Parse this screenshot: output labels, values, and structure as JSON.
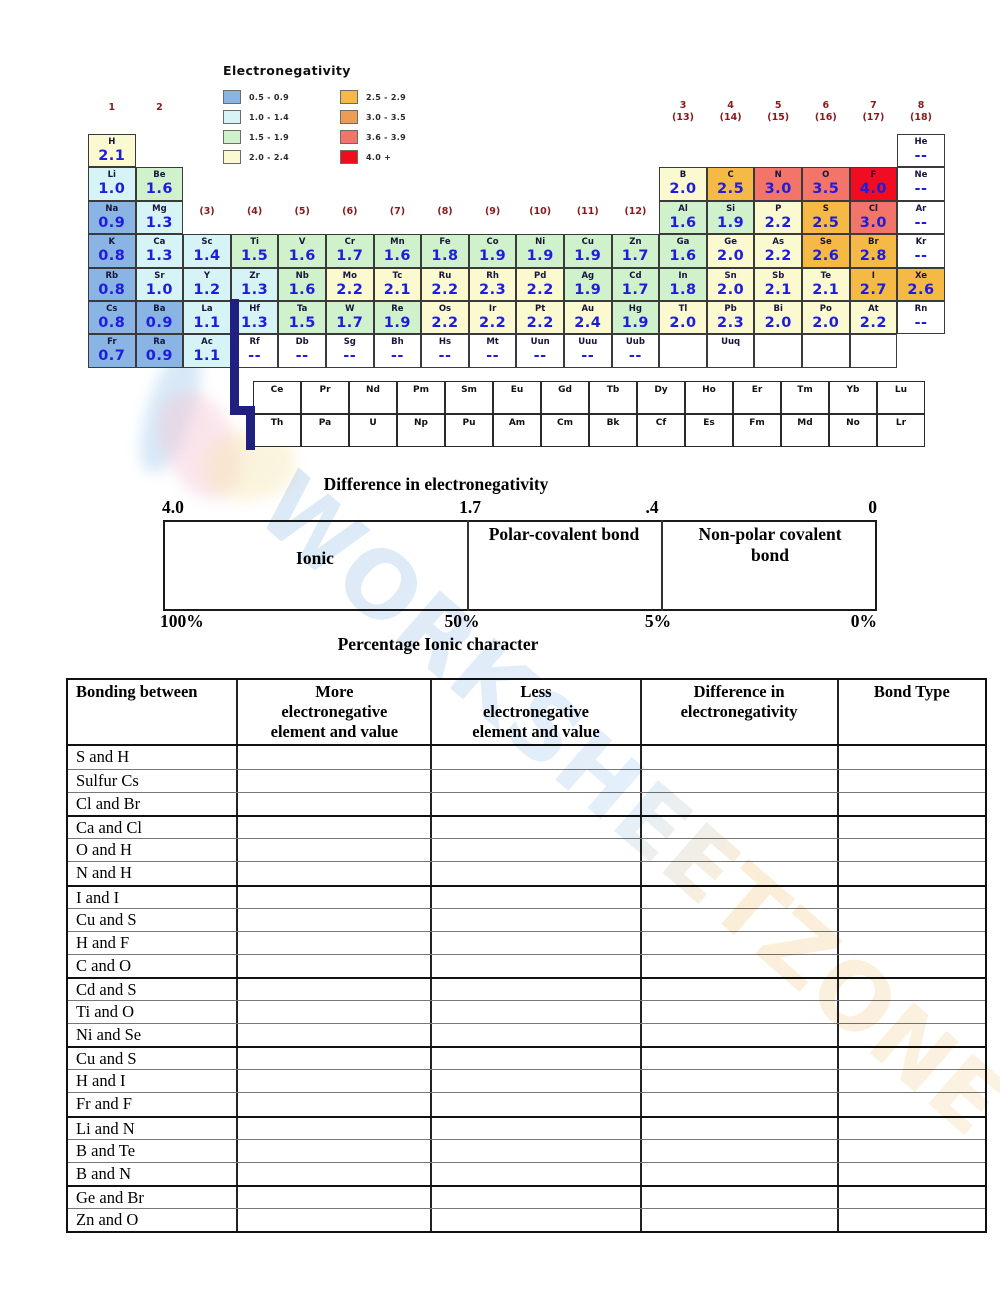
{
  "watermark": {
    "text": "WORKSHEETZONE",
    "blue": "#b9d4ee",
    "orange": "#f9e6c6"
  },
  "legend": {
    "title": "Electronegativity",
    "items": [
      {
        "range": "0.5 - 0.9",
        "color": "#8ab4e4",
        "dotted": false
      },
      {
        "range": "1.0 - 1.4",
        "color": "#d6f3f6",
        "dotted": false
      },
      {
        "range": "1.5 - 1.9",
        "color": "#cff2cc",
        "dotted": false
      },
      {
        "range": "2.0 - 2.4",
        "color": "#fbf9d0",
        "dotted": false
      },
      {
        "range": "2.5 - 2.9",
        "color": "#f5ba45",
        "dotted": false
      },
      {
        "range": "3.0 - 3.5",
        "color": "#eb9c55",
        "dotted": true
      },
      {
        "range": "3.6 - 3.9",
        "color": "#f3756a",
        "dotted": false
      },
      {
        "range": "4.0 +",
        "color": "#ee0d1d",
        "dotted": false
      }
    ]
  },
  "periodic_table": {
    "cell_colors": {
      "blue": "#8ab4e4",
      "cyan": "#d6f3f6",
      "green": "#cff2cc",
      "yellow": "#fbf9d0",
      "orange": "#f5ba45",
      "salmon": "#f3756a",
      "red": "#f10c22",
      "white": "#ffffff"
    },
    "value_color": "#1d1dde",
    "group_label_color": "#8a1a1a",
    "groups_top": [
      {
        "label": "1",
        "col": 1
      },
      {
        "label": "2",
        "col": 2
      }
    ],
    "groups_main": [
      {
        "label": "(3)",
        "col": 3
      },
      {
        "label": "(4)",
        "col": 4
      },
      {
        "label": "(5)",
        "col": 5
      },
      {
        "label": "(6)",
        "col": 6
      },
      {
        "label": "(7)",
        "col": 7
      },
      {
        "label": "(8)",
        "col": 8
      },
      {
        "label": "(9)",
        "col": 9
      },
      {
        "label": "(10)",
        "col": 10
      },
      {
        "label": "(11)",
        "col": 11
      },
      {
        "label": "(12)",
        "col": 12
      }
    ],
    "groups_right": [
      {
        "num": "3",
        "alt": "(13)",
        "col": 13
      },
      {
        "num": "4",
        "alt": "(14)",
        "col": 14
      },
      {
        "num": "5",
        "alt": "(15)",
        "col": 15
      },
      {
        "num": "6",
        "alt": "(16)",
        "col": 16
      },
      {
        "num": "7",
        "alt": "(17)",
        "col": 17
      },
      {
        "num": "8",
        "alt": "(18)",
        "col": 18
      }
    ],
    "elements": [
      {
        "sym": "H",
        "val": "2.1",
        "row": 1,
        "col": 1,
        "color": "yellow"
      },
      {
        "sym": "He",
        "val": "--",
        "row": 1,
        "col": 18,
        "color": "white"
      },
      {
        "sym": "Li",
        "val": "1.0",
        "row": 2,
        "col": 1,
        "color": "cyan"
      },
      {
        "sym": "Be",
        "val": "1.6",
        "row": 2,
        "col": 2,
        "color": "green"
      },
      {
        "sym": "B",
        "val": "2.0",
        "row": 2,
        "col": 13,
        "color": "yellow"
      },
      {
        "sym": "C",
        "val": "2.5",
        "row": 2,
        "col": 14,
        "color": "orange"
      },
      {
        "sym": "N",
        "val": "3.0",
        "row": 2,
        "col": 15,
        "color": "salmon"
      },
      {
        "sym": "O",
        "val": "3.5",
        "row": 2,
        "col": 16,
        "color": "salmon"
      },
      {
        "sym": "F",
        "val": "4.0",
        "row": 2,
        "col": 17,
        "color": "red"
      },
      {
        "sym": "Ne",
        "val": "--",
        "row": 2,
        "col": 18,
        "color": "white"
      },
      {
        "sym": "Na",
        "val": "0.9",
        "row": 3,
        "col": 1,
        "color": "blue"
      },
      {
        "sym": "Mg",
        "val": "1.3",
        "row": 3,
        "col": 2,
        "color": "cyan"
      },
      {
        "sym": "Al",
        "val": "1.6",
        "row": 3,
        "col": 13,
        "color": "green"
      },
      {
        "sym": "Si",
        "val": "1.9",
        "row": 3,
        "col": 14,
        "color": "green"
      },
      {
        "sym": "P",
        "val": "2.2",
        "row": 3,
        "col": 15,
        "color": "yellow"
      },
      {
        "sym": "S",
        "val": "2.5",
        "row": 3,
        "col": 16,
        "color": "orange"
      },
      {
        "sym": "Cl",
        "val": "3.0",
        "row": 3,
        "col": 17,
        "color": "salmon"
      },
      {
        "sym": "Ar",
        "val": "--",
        "row": 3,
        "col": 18,
        "color": "white"
      },
      {
        "sym": "K",
        "val": "0.8",
        "row": 4,
        "col": 1,
        "color": "blue"
      },
      {
        "sym": "Ca",
        "val": "1.3",
        "row": 4,
        "col": 2,
        "color": "cyan"
      },
      {
        "sym": "Sc",
        "val": "1.4",
        "row": 4,
        "col": 3,
        "color": "cyan"
      },
      {
        "sym": "Ti",
        "val": "1.5",
        "row": 4,
        "col": 4,
        "color": "green"
      },
      {
        "sym": "V",
        "val": "1.6",
        "row": 4,
        "col": 5,
        "color": "green"
      },
      {
        "sym": "Cr",
        "val": "1.7",
        "row": 4,
        "col": 6,
        "color": "green"
      },
      {
        "sym": "Mn",
        "val": "1.6",
        "row": 4,
        "col": 7,
        "color": "green"
      },
      {
        "sym": "Fe",
        "val": "1.8",
        "row": 4,
        "col": 8,
        "color": "green"
      },
      {
        "sym": "Co",
        "val": "1.9",
        "row": 4,
        "col": 9,
        "color": "green"
      },
      {
        "sym": "Ni",
        "val": "1.9",
        "row": 4,
        "col": 10,
        "color": "green"
      },
      {
        "sym": "Cu",
        "val": "1.9",
        "row": 4,
        "col": 11,
        "color": "green"
      },
      {
        "sym": "Zn",
        "val": "1.7",
        "row": 4,
        "col": 12,
        "color": "green"
      },
      {
        "sym": "Ga",
        "val": "1.6",
        "row": 4,
        "col": 13,
        "color": "green"
      },
      {
        "sym": "Ge",
        "val": "2.0",
        "row": 4,
        "col": 14,
        "color": "yellow"
      },
      {
        "sym": "As",
        "val": "2.2",
        "row": 4,
        "col": 15,
        "color": "yellow"
      },
      {
        "sym": "Se",
        "val": "2.6",
        "row": 4,
        "col": 16,
        "color": "orange"
      },
      {
        "sym": "Br",
        "val": "2.8",
        "row": 4,
        "col": 17,
        "color": "orange"
      },
      {
        "sym": "Kr",
        "val": "--",
        "row": 4,
        "col": 18,
        "color": "white"
      },
      {
        "sym": "Rb",
        "val": "0.8",
        "row": 5,
        "col": 1,
        "color": "blue"
      },
      {
        "sym": "Sr",
        "val": "1.0",
        "row": 5,
        "col": 2,
        "color": "cyan"
      },
      {
        "sym": "Y",
        "val": "1.2",
        "row": 5,
        "col": 3,
        "color": "cyan"
      },
      {
        "sym": "Zr",
        "val": "1.3",
        "row": 5,
        "col": 4,
        "color": "cyan"
      },
      {
        "sym": "Nb",
        "val": "1.6",
        "row": 5,
        "col": 5,
        "color": "green"
      },
      {
        "sym": "Mo",
        "val": "2.2",
        "row": 5,
        "col": 6,
        "color": "yellow"
      },
      {
        "sym": "Tc",
        "val": "2.1",
        "row": 5,
        "col": 7,
        "color": "yellow"
      },
      {
        "sym": "Ru",
        "val": "2.2",
        "row": 5,
        "col": 8,
        "color": "yellow"
      },
      {
        "sym": "Rh",
        "val": "2.3",
        "row": 5,
        "col": 9,
        "color": "yellow"
      },
      {
        "sym": "Pd",
        "val": "2.2",
        "row": 5,
        "col": 10,
        "color": "yellow"
      },
      {
        "sym": "Ag",
        "val": "1.9",
        "row": 5,
        "col": 11,
        "color": "green"
      },
      {
        "sym": "Cd",
        "val": "1.7",
        "row": 5,
        "col": 12,
        "color": "green"
      },
      {
        "sym": "In",
        "val": "1.8",
        "row": 5,
        "col": 13,
        "color": "green"
      },
      {
        "sym": "Sn",
        "val": "2.0",
        "row": 5,
        "col": 14,
        "color": "yellow"
      },
      {
        "sym": "Sb",
        "val": "2.1",
        "row": 5,
        "col": 15,
        "color": "yellow"
      },
      {
        "sym": "Te",
        "val": "2.1",
        "row": 5,
        "col": 16,
        "color": "yellow"
      },
      {
        "sym": "I",
        "val": "2.7",
        "row": 5,
        "col": 17,
        "color": "orange"
      },
      {
        "sym": "Xe",
        "val": "2.6",
        "row": 5,
        "col": 18,
        "color": "orange"
      },
      {
        "sym": "Cs",
        "val": "0.8",
        "row": 6,
        "col": 1,
        "color": "blue"
      },
      {
        "sym": "Ba",
        "val": "0.9",
        "row": 6,
        "col": 2,
        "color": "blue"
      },
      {
        "sym": "La",
        "val": "1.1",
        "row": 6,
        "col": 3,
        "color": "cyan"
      },
      {
        "sym": "Hf",
        "val": "1.3",
        "row": 6,
        "col": 4,
        "color": "cyan"
      },
      {
        "sym": "Ta",
        "val": "1.5",
        "row": 6,
        "col": 5,
        "color": "green"
      },
      {
        "sym": "W",
        "val": "1.7",
        "row": 6,
        "col": 6,
        "color": "green"
      },
      {
        "sym": "Re",
        "val": "1.9",
        "row": 6,
        "col": 7,
        "color": "green"
      },
      {
        "sym": "Os",
        "val": "2.2",
        "row": 6,
        "col": 8,
        "color": "yellow"
      },
      {
        "sym": "Ir",
        "val": "2.2",
        "row": 6,
        "col": 9,
        "color": "yellow"
      },
      {
        "sym": "Pt",
        "val": "2.2",
        "row": 6,
        "col": 10,
        "color": "yellow"
      },
      {
        "sym": "Au",
        "val": "2.4",
        "row": 6,
        "col": 11,
        "color": "yellow"
      },
      {
        "sym": "Hg",
        "val": "1.9",
        "row": 6,
        "col": 12,
        "color": "green"
      },
      {
        "sym": "Tl",
        "val": "2.0",
        "row": 6,
        "col": 13,
        "color": "yellow"
      },
      {
        "sym": "Pb",
        "val": "2.3",
        "row": 6,
        "col": 14,
        "color": "yellow"
      },
      {
        "sym": "Bi",
        "val": "2.0",
        "row": 6,
        "col": 15,
        "color": "yellow"
      },
      {
        "sym": "Po",
        "val": "2.0",
        "row": 6,
        "col": 16,
        "color": "yellow"
      },
      {
        "sym": "At",
        "val": "2.2",
        "row": 6,
        "col": 17,
        "color": "yellow"
      },
      {
        "sym": "Rn",
        "val": "--",
        "row": 6,
        "col": 18,
        "color": "white"
      },
      {
        "sym": "Fr",
        "val": "0.7",
        "row": 7,
        "col": 1,
        "color": "blue"
      },
      {
        "sym": "Ra",
        "val": "0.9",
        "row": 7,
        "col": 2,
        "color": "blue"
      },
      {
        "sym": "Ac",
        "val": "1.1",
        "row": 7,
        "col": 3,
        "color": "cyan"
      },
      {
        "sym": "Rf",
        "val": "--",
        "row": 7,
        "col": 4,
        "color": "white"
      },
      {
        "sym": "Db",
        "val": "--",
        "row": 7,
        "col": 5,
        "color": "white"
      },
      {
        "sym": "Sg",
        "val": "--",
        "row": 7,
        "col": 6,
        "color": "white"
      },
      {
        "sym": "Bh",
        "val": "--",
        "row": 7,
        "col": 7,
        "color": "white"
      },
      {
        "sym": "Hs",
        "val": "--",
        "row": 7,
        "col": 8,
        "color": "white"
      },
      {
        "sym": "Mt",
        "val": "--",
        "row": 7,
        "col": 9,
        "color": "white"
      },
      {
        "sym": "Uun",
        "val": "--",
        "row": 7,
        "col": 10,
        "color": "white"
      },
      {
        "sym": "Uuu",
        "val": "--",
        "row": 7,
        "col": 11,
        "color": "white"
      },
      {
        "sym": "Uub",
        "val": "--",
        "row": 7,
        "col": 12,
        "color": "white"
      },
      {
        "sym": "",
        "val": "",
        "row": 7,
        "col": 13,
        "color": "white"
      },
      {
        "sym": "Uuq",
        "val": "",
        "row": 7,
        "col": 14,
        "color": "white"
      },
      {
        "sym": "",
        "val": "",
        "row": 7,
        "col": 15,
        "color": "white"
      },
      {
        "sym": "",
        "val": "",
        "row": 7,
        "col": 16,
        "color": "white"
      },
      {
        "sym": "",
        "val": "",
        "row": 7,
        "col": 17,
        "color": "white"
      }
    ],
    "lanthanides": [
      "Ce",
      "Pr",
      "Nd",
      "Pm",
      "Sm",
      "Eu",
      "Gd",
      "Tb",
      "Dy",
      "Ho",
      "Er",
      "Tm",
      "Yb",
      "Lu"
    ],
    "actinides": [
      "Th",
      "Pa",
      "U",
      "Np",
      "Pu",
      "Am",
      "Cm",
      "Bk",
      "Cf",
      "Es",
      "Fm",
      "Md",
      "No",
      "Lr"
    ]
  },
  "scale": {
    "title": "Difference in electronegativity",
    "ticks_top": [
      "4.0",
      "1.7",
      ".4",
      "0"
    ],
    "sections": [
      "Ionic",
      "Polar-covalent bond",
      "Non-polar covalent\nbond"
    ],
    "ticks_bottom": [
      "100%",
      "50%",
      "5%",
      "0%"
    ],
    "caption": "Percentage Ionic character"
  },
  "bonding_table": {
    "headers": [
      "Bonding between",
      "More\nelectronegative\nelement and value",
      "Less\nelectronegative\nelement and value",
      "Difference in\nelectronegativity",
      "Bond Type"
    ],
    "rows": [
      "S and H",
      "Sulfur Cs",
      "Cl and Br",
      "Ca and Cl",
      "O and H",
      "N and H",
      "I and I",
      "Cu and S",
      "H and F",
      "C and O",
      "Cd and S",
      "Ti and O",
      "Ni and Se",
      "Cu and S",
      "H and I",
      "Fr and F",
      "Li and N",
      "B and Te",
      "B and N",
      "Ge and Br",
      "Zn and O"
    ]
  }
}
